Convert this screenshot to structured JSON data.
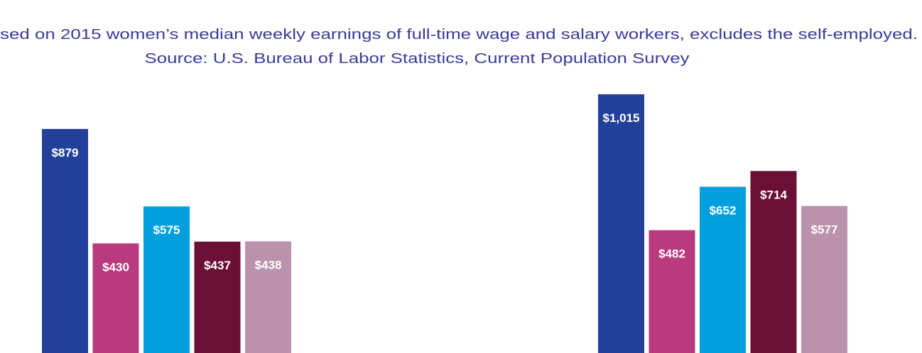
{
  "chart_data": {
    "type": "bar",
    "subtitle": [
      "sed on 2015 women’s median weekly earnings of full-time wage and salary workers, excludes the self-employed.",
      "Source: U.S. Bureau of Labor Statistics, Current Population Survey"
    ],
    "categories": [
      null,
      null
    ],
    "series": [
      {
        "color": "#22409a",
        "values": [
          879,
          1015
        ],
        "value_labels": [
          "$879",
          "$1,015"
        ]
      },
      {
        "color": "#b93a7e",
        "values": [
          430,
          482
        ],
        "value_labels": [
          "$430",
          "$482"
        ]
      },
      {
        "color": "#009fdf",
        "values": [
          575,
          652
        ],
        "value_labels": [
          "$575",
          "$652"
        ]
      },
      {
        "color": "#6b0f36",
        "values": [
          437,
          714
        ],
        "value_labels": [
          "$437",
          "$714"
        ]
      },
      {
        "color": "#bb92ab",
        "values": [
          438,
          577
        ],
        "value_labels": [
          "$438",
          "$577"
        ]
      }
    ],
    "ylim": [
      0,
      1385
    ]
  }
}
